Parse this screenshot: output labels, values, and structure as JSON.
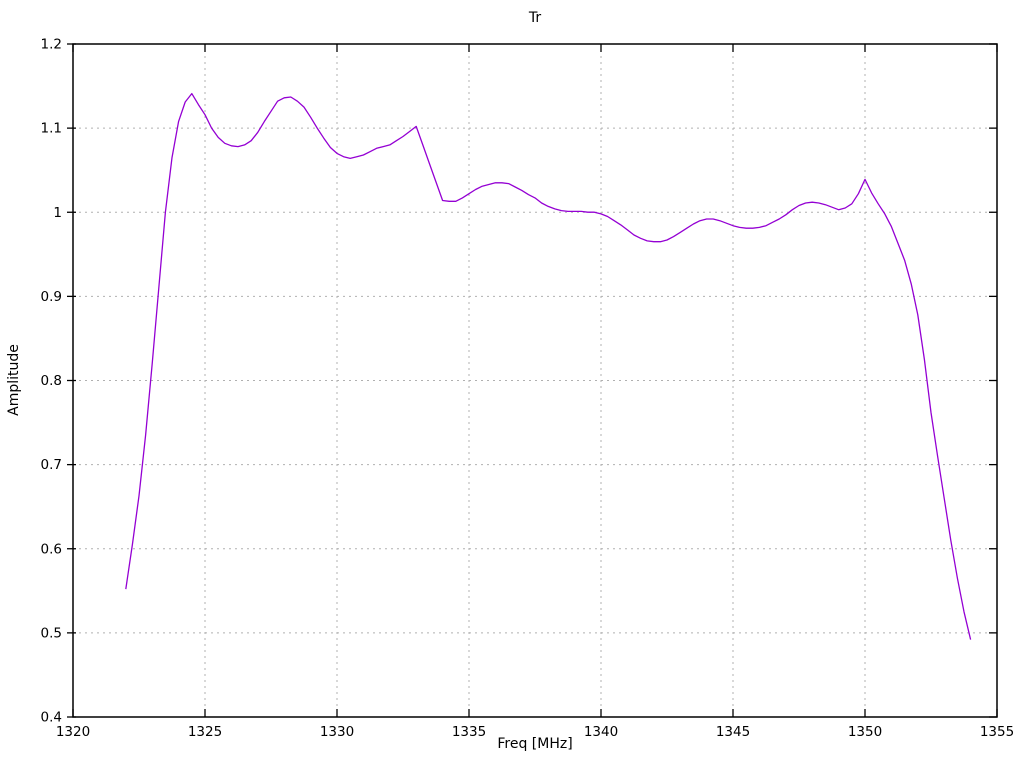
{
  "title": "Tr",
  "axes": {
    "xlabel": "Freq [MHz]",
    "ylabel": "Amplitude",
    "xtick_labels": [
      "1320",
      "1325",
      "1330",
      "1335",
      "1340",
      "1345",
      "1350",
      "1355"
    ],
    "ytick_labels": [
      "0.4",
      "0.5",
      "0.6",
      "0.7",
      "0.8",
      "0.9",
      "1",
      "1.1",
      "1.2"
    ]
  },
  "colors": {
    "line": "#9400d3",
    "grid": "#b0b0b0",
    "border": "#000000",
    "text": "#000000",
    "background": "#ffffff"
  },
  "chart_data": {
    "type": "line",
    "title": "Tr",
    "xlabel": "Freq [MHz]",
    "ylabel": "Amplitude",
    "xlim": [
      1320,
      1355
    ],
    "ylim": [
      0.4,
      1.2
    ],
    "xticks": [
      1320,
      1325,
      1330,
      1335,
      1340,
      1345,
      1350,
      1355
    ],
    "yticks": [
      0.4,
      0.5,
      0.6,
      0.7,
      0.8,
      0.9,
      1.0,
      1.1,
      1.2
    ],
    "grid": true,
    "legend": false,
    "series_name": "Tr",
    "x": [
      1322.0,
      1322.25,
      1322.5,
      1322.75,
      1323.0,
      1323.25,
      1323.5,
      1323.75,
      1324.0,
      1324.25,
      1324.5,
      1324.75,
      1325.0,
      1325.25,
      1325.5,
      1325.75,
      1326.0,
      1326.25,
      1326.5,
      1326.75,
      1327.0,
      1327.25,
      1327.5,
      1327.75,
      1328.0,
      1328.25,
      1328.5,
      1328.75,
      1329.0,
      1329.25,
      1329.5,
      1329.75,
      1330.0,
      1330.25,
      1330.5,
      1330.75,
      1331.0,
      1331.25,
      1331.5,
      1331.75,
      1332.0,
      1332.25,
      1332.5,
      1332.75,
      1333.0,
      1333.25,
      1333.5,
      1333.75,
      1334.0,
      1334.25,
      1334.5,
      1334.75,
      1335.0,
      1335.25,
      1335.5,
      1335.75,
      1336.0,
      1336.25,
      1336.5,
      1336.75,
      1337.0,
      1337.25,
      1337.5,
      1337.75,
      1338.0,
      1338.25,
      1338.5,
      1338.75,
      1339.0,
      1339.25,
      1339.5,
      1339.75,
      1340.0,
      1340.25,
      1340.5,
      1340.75,
      1341.0,
      1341.25,
      1341.5,
      1341.75,
      1342.0,
      1342.25,
      1342.5,
      1342.75,
      1343.0,
      1343.25,
      1343.5,
      1343.75,
      1344.0,
      1344.25,
      1344.5,
      1344.75,
      1345.0,
      1345.25,
      1345.5,
      1345.75,
      1346.0,
      1346.25,
      1346.5,
      1346.75,
      1347.0,
      1347.25,
      1347.5,
      1347.75,
      1348.0,
      1348.25,
      1348.5,
      1348.75,
      1349.0,
      1349.25,
      1349.5,
      1349.75,
      1350.0,
      1350.25,
      1350.5,
      1350.75,
      1351.0,
      1351.25,
      1351.5,
      1351.75,
      1352.0,
      1352.25,
      1352.5,
      1352.75,
      1353.0,
      1353.25,
      1353.5,
      1353.75,
      1354.0
    ],
    "y": [
      0.552,
      0.605,
      0.663,
      0.735,
      0.82,
      0.91,
      1.0,
      1.065,
      1.108,
      1.131,
      1.141,
      1.128,
      1.116,
      1.1,
      1.089,
      1.082,
      1.079,
      1.078,
      1.08,
      1.085,
      1.095,
      1.108,
      1.12,
      1.132,
      1.136,
      1.137,
      1.132,
      1.125,
      1.113,
      1.1,
      1.088,
      1.077,
      1.07,
      1.066,
      1.064,
      1.066,
      1.068,
      1.072,
      1.076,
      1.078,
      1.08,
      1.085,
      1.09,
      1.096,
      1.102,
      1.08,
      1.058,
      1.036,
      1.014,
      1.013,
      1.013,
      1.017,
      1.022,
      1.027,
      1.031,
      1.033,
      1.035,
      1.035,
      1.034,
      1.03,
      1.026,
      1.021,
      1.017,
      1.011,
      1.007,
      1.004,
      1.002,
      1.001,
      1.001,
      1.001,
      1.0,
      1.0,
      0.998,
      0.995,
      0.99,
      0.985,
      0.979,
      0.973,
      0.969,
      0.966,
      0.965,
      0.965,
      0.967,
      0.971,
      0.976,
      0.981,
      0.986,
      0.99,
      0.992,
      0.992,
      0.99,
      0.987,
      0.984,
      0.982,
      0.981,
      0.981,
      0.982,
      0.984,
      0.988,
      0.992,
      0.997,
      1.003,
      1.008,
      1.011,
      1.012,
      1.011,
      1.009,
      1.006,
      1.003,
      1.005,
      1.01,
      1.022,
      1.039,
      1.023,
      1.01,
      0.998,
      0.983,
      0.963,
      0.943,
      0.915,
      0.878,
      0.825,
      0.762,
      0.71,
      0.66,
      0.61,
      0.565,
      0.525,
      0.492
    ]
  }
}
